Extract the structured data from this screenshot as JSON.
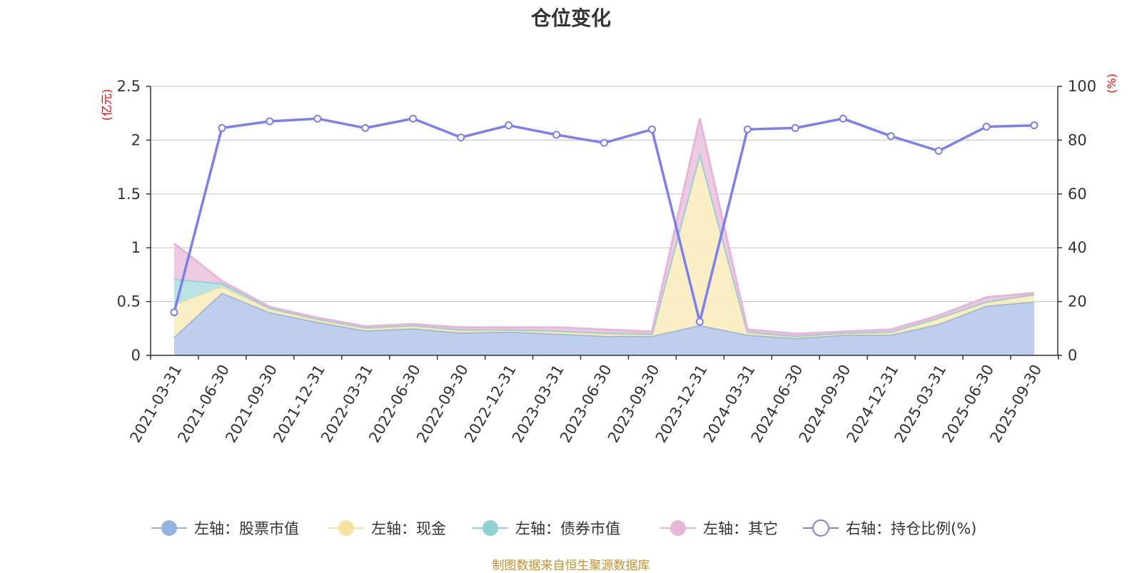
{
  "chart_data": {
    "type": "area",
    "title": "仓位变化",
    "left_axis_unit": "(亿元)",
    "right_axis_unit": "(%)",
    "categories": [
      "2021-03-31",
      "2021-06-30",
      "2021-09-30",
      "2021-12-31",
      "2022-03-31",
      "2022-06-30",
      "2022-09-30",
      "2022-12-31",
      "2023-03-31",
      "2023-06-30",
      "2023-09-30",
      "2023-12-31",
      "2024-03-31",
      "2024-06-30",
      "2024-09-30",
      "2024-12-31",
      "2025-03-31",
      "2025-06-30",
      "2025-09-30"
    ],
    "y_left_lim": [
      0,
      2.5
    ],
    "y_left_ticks": [
      "0",
      "0.5",
      "1",
      "1.5",
      "2",
      "2.5"
    ],
    "y_right_lim": [
      0,
      100
    ],
    "y_right_ticks": [
      "0",
      "20",
      "40",
      "60",
      "80",
      "100"
    ],
    "grid": true,
    "stacked": true,
    "series": [
      {
        "name": "左轴：股票市值",
        "axis": "left",
        "color": "#95b3e0",
        "fill": "#b7c9ea",
        "values": [
          0.17,
          0.58,
          0.4,
          0.31,
          0.23,
          0.25,
          0.21,
          0.22,
          0.2,
          0.18,
          0.18,
          0.28,
          0.19,
          0.16,
          0.19,
          0.19,
          0.29,
          0.46,
          0.5
        ]
      },
      {
        "name": "左轴：现金",
        "axis": "left",
        "color": "#f6e3a0",
        "fill": "#f9ecbf",
        "values": [
          0.3,
          0.06,
          0.03,
          0.02,
          0.02,
          0.02,
          0.02,
          0.01,
          0.02,
          0.02,
          0.01,
          1.59,
          0.02,
          0.01,
          0.01,
          0.02,
          0.05,
          0.03,
          0.06
        ]
      },
      {
        "name": "左轴：债券市值",
        "axis": "left",
        "color": "#8dd1d1",
        "fill": "#b3e0e2",
        "values": [
          0.24,
          0.03,
          0.01,
          0.01,
          0.01,
          0.01,
          0.01,
          0.01,
          0.01,
          0.01,
          0.01,
          0.0,
          0.01,
          0.01,
          0.01,
          0.01,
          0.01,
          0.01,
          0.01
        ]
      },
      {
        "name": "左轴：其它",
        "axis": "left",
        "color": "#e7b5d8",
        "fill": "#ebc6e0",
        "values": [
          0.33,
          0.02,
          0.01,
          0.01,
          0.01,
          0.01,
          0.02,
          0.02,
          0.03,
          0.03,
          0.02,
          0.33,
          0.02,
          0.02,
          0.01,
          0.02,
          0.02,
          0.04,
          0.01
        ]
      },
      {
        "name": "右轴：持仓比例(%)",
        "axis": "right",
        "color": "#7b7ff0",
        "values": [
          16,
          84.5,
          87,
          88,
          84.5,
          88,
          81,
          85.5,
          82,
          79,
          84,
          12.5,
          84,
          84.5,
          88,
          81.5,
          76,
          85,
          85.5
        ]
      }
    ]
  },
  "footer": {
    "source": "制图数据来自恒生聚源数据库"
  }
}
